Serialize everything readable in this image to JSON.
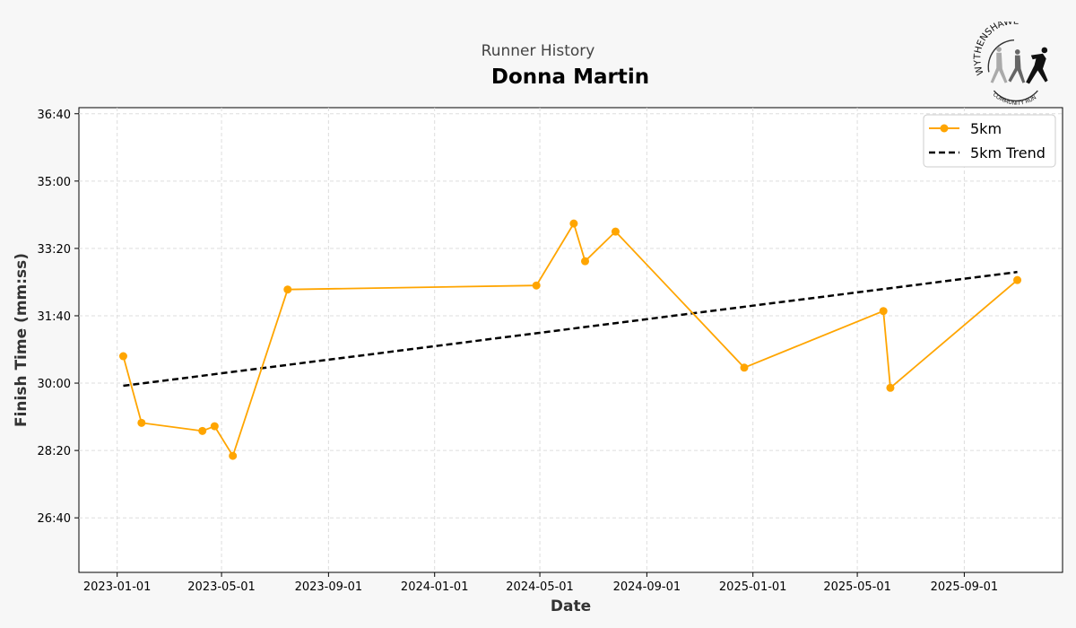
{
  "header": {
    "subtitle": "Runner History",
    "title": "Donna Martin"
  },
  "logo": {
    "top_text": "WYTHENSHAWE",
    "bottom_text": "COMMUNITY RUN"
  },
  "chart_data": {
    "type": "line",
    "title": "Donna Martin",
    "subtitle": "Runner History",
    "xlabel": "Date",
    "ylabel": "Finish Time (mm:ss)",
    "xlim": [
      "2022-11-18",
      "2025-12-23"
    ],
    "ylim_seconds": [
      1519,
      2209
    ],
    "grid": true,
    "legend_position": "top-right",
    "x_ticks": [
      "2023-01-01",
      "2023-05-01",
      "2023-09-01",
      "2024-01-01",
      "2024-05-01",
      "2024-09-01",
      "2025-01-01",
      "2025-05-01",
      "2025-09-01"
    ],
    "y_ticks": [
      {
        "label": "26:40",
        "seconds": 1600
      },
      {
        "label": "28:20",
        "seconds": 1700
      },
      {
        "label": "30:00",
        "seconds": 1800
      },
      {
        "label": "31:40",
        "seconds": 1900
      },
      {
        "label": "33:20",
        "seconds": 2000
      },
      {
        "label": "35:00",
        "seconds": 2100
      },
      {
        "label": "36:40",
        "seconds": 2200
      }
    ],
    "series": [
      {
        "name": "5km",
        "color": "#ffa500",
        "x": [
          "2023-01-08",
          "2023-01-29",
          "2023-04-09",
          "2023-04-23",
          "2023-05-14",
          "2023-07-16",
          "2024-04-27",
          "2024-06-09",
          "2024-06-22",
          "2024-07-27",
          "2024-12-22",
          "2025-05-31",
          "2025-06-08",
          "2025-11-01"
        ],
        "y": [
          "30:40",
          "29:01",
          "28:49",
          "28:56",
          "28:12",
          "32:19",
          "32:25",
          "33:57",
          "33:01",
          "33:45",
          "30:23",
          "31:47",
          "29:53",
          "32:33"
        ]
      },
      {
        "name": "5km Trend",
        "color": "#000000",
        "style": "dashed",
        "x": [
          "2023-01-08",
          "2025-11-01"
        ],
        "y": [
          "29:56",
          "32:45"
        ]
      }
    ]
  }
}
